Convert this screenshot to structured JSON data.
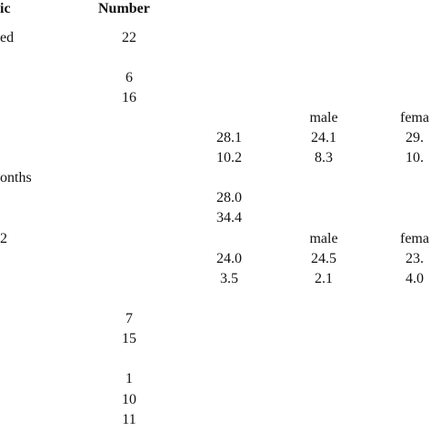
{
  "header": {
    "characteristic": "ic",
    "number": "Number"
  },
  "labels": {
    "row_ed": "ed",
    "row_onths": "onths",
    "row_2": "2"
  },
  "number_col": {
    "r1": "22",
    "r2": "6",
    "r3": "16",
    "r4": "7",
    "r5": "15",
    "r6": "1",
    "r7": "10",
    "r8": "11"
  },
  "group1": {
    "male_header": "male",
    "female_header": "fema",
    "mean": "28.1",
    "sd": "10.2",
    "male_mean": "24.1",
    "male_sd": "8.3",
    "female_mean": "29.",
    "female_sd": "10."
  },
  "group2": {
    "v1": "28.0",
    "v2": "34.4"
  },
  "group3": {
    "male_header": "male",
    "female_header": "fema",
    "mean": "24.0",
    "sd": "3.5",
    "male_mean": "24.5",
    "male_sd": "2.1",
    "female_mean": "23.",
    "female_sd": "4.0"
  }
}
